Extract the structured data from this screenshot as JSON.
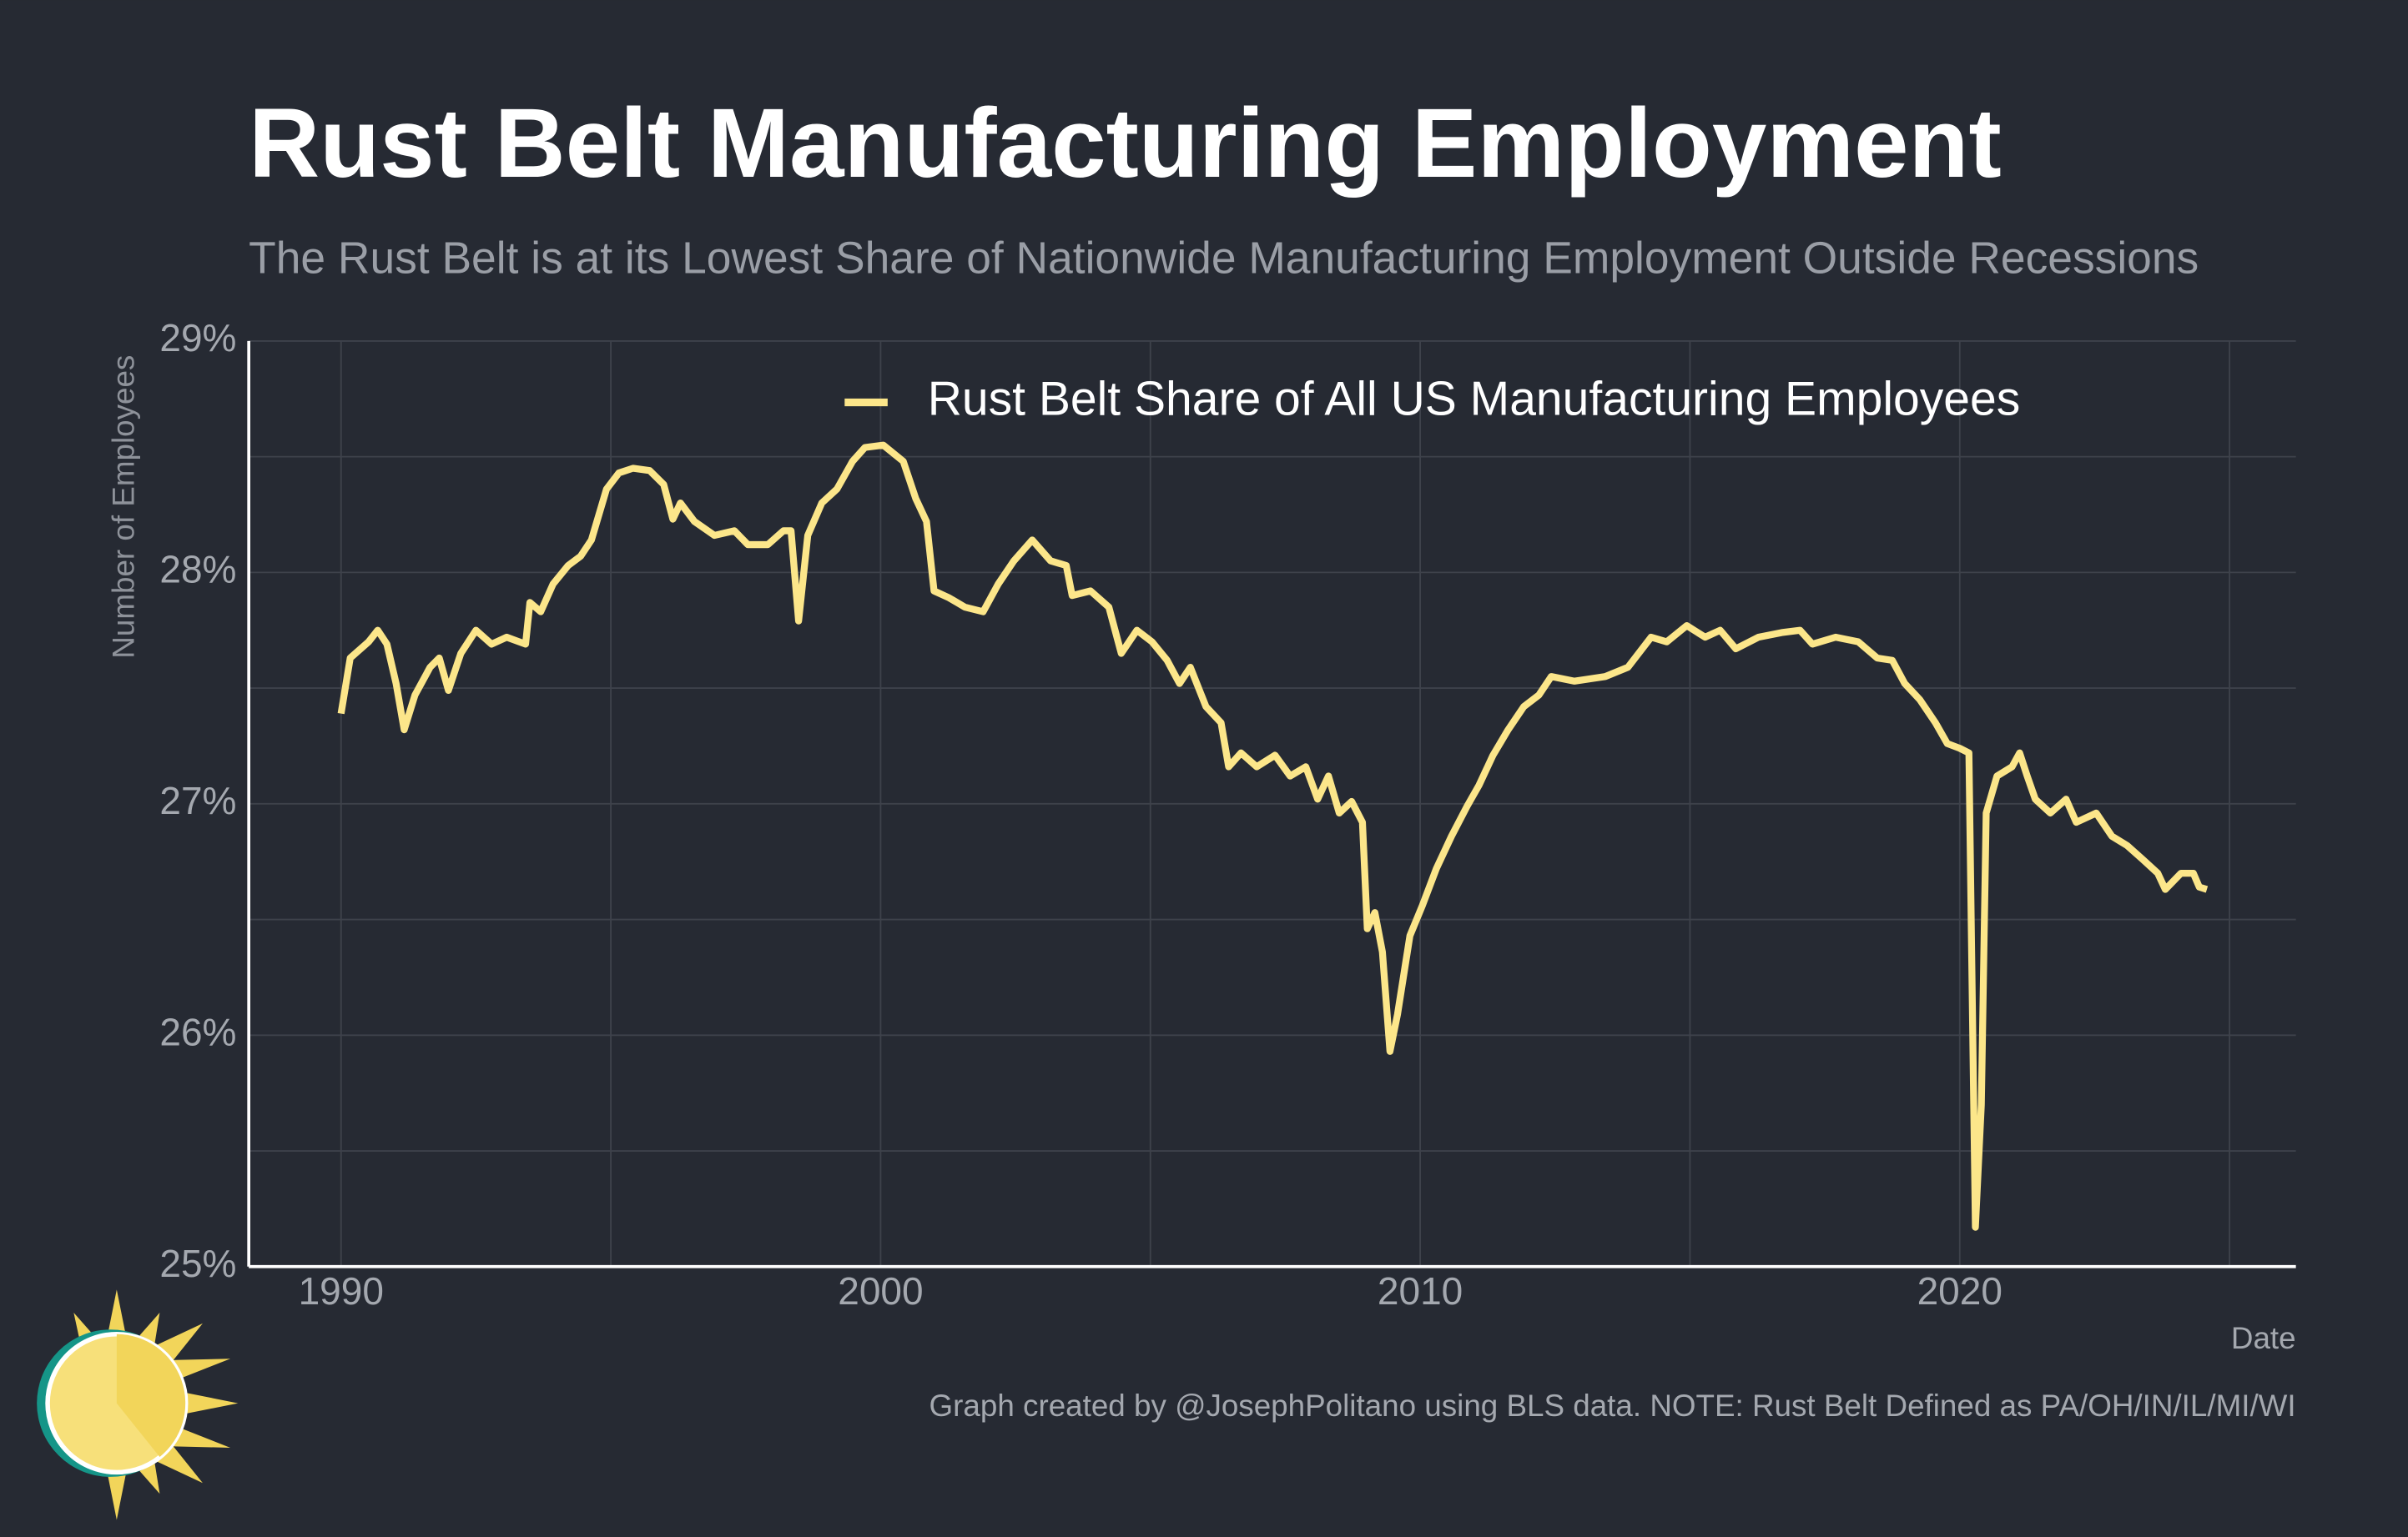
{
  "chart_data": {
    "type": "line",
    "title": "Rust Belt Manufacturing Employment",
    "subtitle": "The Rust Belt is at its Lowest Share of Nationwide Manufacturing Employment Outside Recessions",
    "y_label": "Number of Employees",
    "x_label": "Date",
    "note": "Graph created by @JosephPolitano using BLS data. NOTE: Rust Belt Defined as PA/OH/IN/IL/MI/WI",
    "x": [
      1990.0,
      1990.17,
      1990.51,
      1990.68,
      1990.85,
      1991.02,
      1991.17,
      1991.37,
      1991.65,
      1991.82,
      1991.99,
      1992.22,
      1992.5,
      1992.79,
      1993.07,
      1993.42,
      1993.5,
      1993.7,
      1993.93,
      1994.21,
      1994.44,
      1994.64,
      1994.92,
      1995.15,
      1995.41,
      1995.72,
      1995.98,
      1996.15,
      1996.29,
      1996.55,
      1996.92,
      1997.29,
      1997.54,
      1997.91,
      1998.2,
      1998.34,
      1998.48,
      1998.65,
      1998.91,
      1999.19,
      1999.48,
      1999.71,
      2000.05,
      2000.42,
      2000.65,
      2000.85,
      2000.99,
      2001.27,
      2001.56,
      2001.9,
      2002.18,
      2002.47,
      2002.81,
      2003.15,
      2003.44,
      2003.55,
      2003.89,
      2004.23,
      2004.46,
      2004.75,
      2005.03,
      2005.31,
      2005.54,
      2005.74,
      2006.03,
      2006.31,
      2006.45,
      2006.68,
      2006.97,
      2007.31,
      2007.59,
      2007.88,
      2008.1,
      2008.3,
      2008.5,
      2008.73,
      2008.93,
      2009.02,
      2009.16,
      2009.3,
      2009.44,
      2009.58,
      2009.81,
      2010.04,
      2010.3,
      2010.58,
      2010.87,
      2011.09,
      2011.35,
      2011.63,
      2011.92,
      2012.2,
      2012.43,
      2012.86,
      2013.43,
      2013.85,
      2014.28,
      2014.57,
      2014.94,
      2015.28,
      2015.56,
      2015.85,
      2016.27,
      2016.7,
      2017.04,
      2017.27,
      2017.7,
      2018.12,
      2018.47,
      2018.75,
      2018.98,
      2019.26,
      2019.55,
      2019.77,
      2020.0,
      2020.17,
      2020.29,
      2020.4,
      2020.49,
      2020.69,
      2020.97,
      2021.11,
      2021.25,
      2021.4,
      2021.68,
      2021.97,
      2022.16,
      2022.53,
      2022.82,
      2023.1,
      2023.39,
      2023.67,
      2023.81,
      2024.1,
      2024.33,
      2024.44,
      2024.58
    ],
    "series": [
      {
        "name": "Rust Belt Share of All US Manufacturing Employees",
        "color": "#fce68a",
        "values": [
          27.39,
          27.63,
          27.7,
          27.75,
          27.69,
          27.52,
          27.32,
          27.47,
          27.59,
          27.63,
          27.49,
          27.65,
          27.75,
          27.69,
          27.72,
          27.69,
          27.87,
          27.83,
          27.95,
          28.03,
          28.07,
          28.14,
          28.36,
          28.43,
          28.45,
          28.44,
          28.38,
          28.23,
          28.3,
          28.22,
          28.16,
          28.18,
          28.12,
          28.12,
          28.18,
          28.18,
          27.79,
          28.16,
          28.3,
          28.36,
          28.48,
          28.54,
          28.55,
          28.48,
          28.32,
          28.22,
          27.92,
          27.89,
          27.85,
          27.83,
          27.95,
          28.05,
          28.14,
          28.05,
          28.03,
          27.9,
          27.92,
          27.85,
          27.65,
          27.75,
          27.7,
          27.62,
          27.52,
          27.59,
          27.42,
          27.35,
          27.16,
          27.22,
          27.16,
          27.21,
          27.12,
          27.16,
          27.02,
          27.12,
          26.96,
          27.01,
          26.92,
          26.46,
          26.53,
          26.36,
          25.93,
          26.09,
          26.43,
          26.56,
          26.72,
          26.86,
          26.99,
          27.08,
          27.21,
          27.32,
          27.42,
          27.47,
          27.55,
          27.53,
          27.55,
          27.59,
          27.72,
          27.7,
          27.77,
          27.72,
          27.75,
          27.67,
          27.72,
          27.74,
          27.75,
          27.69,
          27.72,
          27.7,
          27.63,
          27.62,
          27.52,
          27.45,
          27.35,
          27.26,
          27.24,
          27.22,
          25.17,
          25.7,
          26.96,
          27.12,
          27.16,
          27.22,
          27.12,
          27.02,
          26.96,
          27.02,
          26.92,
          26.96,
          26.86,
          26.82,
          26.76,
          26.7,
          26.63,
          26.7,
          26.7,
          26.64,
          26.63
        ]
      }
    ],
    "xlim": [
      1988.29,
      2026.23
    ],
    "xticks": [
      1990,
      2000,
      2010,
      2020
    ],
    "ylim": [
      25,
      29
    ],
    "yticks": [
      {
        "value": 25,
        "label": "25%"
      },
      {
        "value": 26,
        "label": "26%"
      },
      {
        "value": 27,
        "label": "27%"
      },
      {
        "value": 28,
        "label": "28%"
      },
      {
        "value": 29,
        "label": "29%"
      }
    ],
    "grid": true,
    "legend": "top"
  }
}
